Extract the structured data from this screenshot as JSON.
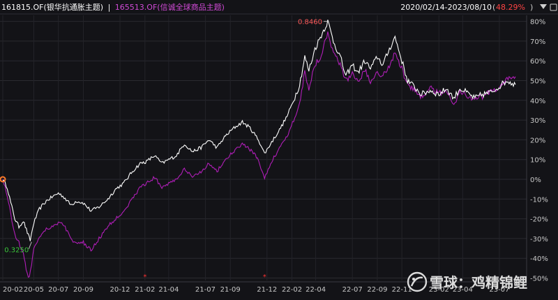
{
  "header": {
    "series1_code": "161815.OF",
    "series1_name": "(银华抗通胀主题)",
    "separator": "|",
    "series2_code": "165513.OF",
    "series2_name": "(信诚全球商品主题)",
    "date_range": "2020/02/14-2023/08/10",
    "change_value": "48.29%",
    "dropdown_icon": "triangle-down-icon"
  },
  "watermark": {
    "logo_icon": "snowball-logo-icon",
    "text": "雪球：鸡精锦鲤"
  },
  "colors": {
    "background": "#131317",
    "series1": "#ffffff",
    "series2": "#b01eb8",
    "max_label": "#ff5a5a",
    "min_label": "#3cc83c",
    "change_value": "#ff4444",
    "marker": "#ff3333"
  },
  "chart_data": {
    "type": "line",
    "title": "",
    "xlabel": "",
    "ylabel": "",
    "ylim": [
      -58,
      82
    ],
    "y_ticks": [
      80,
      70,
      60,
      50,
      40,
      30,
      20,
      10,
      0,
      -10,
      -20,
      -30,
      -40,
      -50
    ],
    "y_tick_labels": [
      "80%",
      "70%",
      "60%",
      "50%",
      "40%",
      "30%",
      "20%",
      "10%",
      "0%",
      "-10%",
      "-20%",
      "-30%",
      "-40%",
      "-50%"
    ],
    "x_ticks": [
      "2020-02-14",
      "2020-05-01",
      "2020-07-01",
      "2020-09-01",
      "2020-12-01",
      "2021-02-01",
      "2021-04-01",
      "2021-07-01",
      "2021-09-01",
      "2021-12-01",
      "2022-02-01",
      "2022-04-01",
      "2022-07-01",
      "2022-09-01",
      "2022-11-01",
      "2023-02-01",
      "2023-04-01",
      "2023-07-01"
    ],
    "x_tick_labels": [
      "20-02",
      "20-05",
      "20-07",
      "20-09",
      "20-12",
      "21-02",
      "21-04",
      "21-07",
      "21-09",
      "21-12",
      "22-02",
      "22-04",
      "22-07",
      "22-09",
      "22-11",
      "23-02",
      "23-04",
      "23-07"
    ],
    "x_range": [
      "2020-02-14",
      "2023-08-10"
    ],
    "grid": true,
    "series": [
      {
        "code": "161815.OF",
        "points": [
          [
            "2020-02-14",
            0
          ],
          [
            "2020-02-25",
            -4
          ],
          [
            "2020-03-05",
            -12
          ],
          [
            "2020-03-15",
            -20
          ],
          [
            "2020-03-25",
            -24
          ],
          [
            "2020-04-05",
            -21
          ],
          [
            "2020-04-15",
            -27
          ],
          [
            "2020-04-22",
            -31
          ],
          [
            "2020-05-01",
            -22
          ],
          [
            "2020-05-15",
            -15
          ],
          [
            "2020-06-01",
            -11
          ],
          [
            "2020-06-15",
            -9
          ],
          [
            "2020-07-01",
            -7
          ],
          [
            "2020-07-15",
            -9
          ],
          [
            "2020-08-01",
            -13
          ],
          [
            "2020-08-15",
            -11
          ],
          [
            "2020-09-01",
            -12
          ],
          [
            "2020-09-20",
            -16
          ],
          [
            "2020-10-10",
            -14
          ],
          [
            "2020-11-01",
            -10
          ],
          [
            "2020-11-20",
            -5
          ],
          [
            "2020-12-10",
            -2
          ],
          [
            "2021-01-01",
            4
          ],
          [
            "2021-01-20",
            8
          ],
          [
            "2021-02-05",
            9
          ],
          [
            "2021-02-25",
            12
          ],
          [
            "2021-03-15",
            8
          ],
          [
            "2021-04-01",
            10
          ],
          [
            "2021-04-20",
            12
          ],
          [
            "2021-05-10",
            18
          ],
          [
            "2021-05-30",
            14
          ],
          [
            "2021-06-20",
            16
          ],
          [
            "2021-07-10",
            20
          ],
          [
            "2021-07-30",
            16
          ],
          [
            "2021-08-20",
            22
          ],
          [
            "2021-09-10",
            26
          ],
          [
            "2021-10-01",
            29
          ],
          [
            "2021-10-20",
            26
          ],
          [
            "2021-11-10",
            20
          ],
          [
            "2021-11-25",
            13
          ],
          [
            "2021-12-10",
            18
          ],
          [
            "2022-01-01",
            25
          ],
          [
            "2022-01-20",
            32
          ],
          [
            "2022-02-05",
            40
          ],
          [
            "2022-02-20",
            48
          ],
          [
            "2022-03-05",
            62
          ],
          [
            "2022-03-15",
            55
          ],
          [
            "2022-03-30",
            66
          ],
          [
            "2022-04-15",
            73
          ],
          [
            "2022-05-01",
            80
          ],
          [
            "2022-05-15",
            70
          ],
          [
            "2022-06-01",
            62
          ],
          [
            "2022-06-15",
            52
          ],
          [
            "2022-07-01",
            58
          ],
          [
            "2022-07-15",
            54
          ],
          [
            "2022-08-01",
            60
          ],
          [
            "2022-08-15",
            56
          ],
          [
            "2022-09-01",
            62
          ],
          [
            "2022-09-15",
            58
          ],
          [
            "2022-10-01",
            66
          ],
          [
            "2022-10-15",
            72
          ],
          [
            "2022-11-01",
            60
          ],
          [
            "2022-11-15",
            50
          ],
          [
            "2022-12-01",
            47
          ],
          [
            "2022-12-20",
            43
          ],
          [
            "2023-01-10",
            45
          ],
          [
            "2023-02-01",
            43
          ],
          [
            "2023-02-20",
            46
          ],
          [
            "2023-03-10",
            41
          ],
          [
            "2023-03-25",
            46
          ],
          [
            "2023-04-10",
            44
          ],
          [
            "2023-05-01",
            41
          ],
          [
            "2023-05-20",
            43
          ],
          [
            "2023-06-10",
            44
          ],
          [
            "2023-06-30",
            47
          ],
          [
            "2023-07-20",
            50
          ],
          [
            "2023-08-10",
            48
          ]
        ]
      },
      {
        "code": "165513.OF",
        "points": [
          [
            "2020-02-14",
            0
          ],
          [
            "2020-02-25",
            -8
          ],
          [
            "2020-03-05",
            -18
          ],
          [
            "2020-03-15",
            -28
          ],
          [
            "2020-03-25",
            -32
          ],
          [
            "2020-04-05",
            -38
          ],
          [
            "2020-04-12",
            -45
          ],
          [
            "2020-04-20",
            -50
          ],
          [
            "2020-05-01",
            -35
          ],
          [
            "2020-05-15",
            -29
          ],
          [
            "2020-06-01",
            -25
          ],
          [
            "2020-06-15",
            -24
          ],
          [
            "2020-07-01",
            -22
          ],
          [
            "2020-07-15",
            -23
          ],
          [
            "2020-08-01",
            -30
          ],
          [
            "2020-08-15",
            -33
          ],
          [
            "2020-09-01",
            -32
          ],
          [
            "2020-09-20",
            -36
          ],
          [
            "2020-10-10",
            -30
          ],
          [
            "2020-11-01",
            -24
          ],
          [
            "2020-11-20",
            -20
          ],
          [
            "2020-12-10",
            -16
          ],
          [
            "2021-01-01",
            -10
          ],
          [
            "2021-01-20",
            -4
          ],
          [
            "2021-02-05",
            -2
          ],
          [
            "2021-02-25",
            1
          ],
          [
            "2021-03-15",
            -4
          ],
          [
            "2021-04-01",
            -2
          ],
          [
            "2021-04-20",
            0
          ],
          [
            "2021-05-10",
            5
          ],
          [
            "2021-05-30",
            1
          ],
          [
            "2021-06-20",
            4
          ],
          [
            "2021-07-10",
            8
          ],
          [
            "2021-07-30",
            4
          ],
          [
            "2021-08-20",
            10
          ],
          [
            "2021-09-10",
            14
          ],
          [
            "2021-10-01",
            18
          ],
          [
            "2021-10-20",
            15
          ],
          [
            "2021-11-10",
            10
          ],
          [
            "2021-11-25",
            0
          ],
          [
            "2021-12-10",
            8
          ],
          [
            "2022-01-01",
            16
          ],
          [
            "2022-01-20",
            22
          ],
          [
            "2022-02-05",
            30
          ],
          [
            "2022-02-20",
            38
          ],
          [
            "2022-03-05",
            55
          ],
          [
            "2022-03-15",
            46
          ],
          [
            "2022-03-30",
            58
          ],
          [
            "2022-04-15",
            63
          ],
          [
            "2022-05-01",
            75
          ],
          [
            "2022-05-15",
            64
          ],
          [
            "2022-06-01",
            58
          ],
          [
            "2022-06-15",
            50
          ],
          [
            "2022-07-01",
            54
          ],
          [
            "2022-07-15",
            50
          ],
          [
            "2022-08-01",
            55
          ],
          [
            "2022-08-15",
            50
          ],
          [
            "2022-09-01",
            55
          ],
          [
            "2022-09-15",
            52
          ],
          [
            "2022-10-01",
            58
          ],
          [
            "2022-10-15",
            64
          ],
          [
            "2022-11-01",
            56
          ],
          [
            "2022-11-15",
            48
          ],
          [
            "2022-12-01",
            45
          ],
          [
            "2022-12-20",
            42
          ],
          [
            "2023-01-10",
            46
          ],
          [
            "2023-02-01",
            44
          ],
          [
            "2023-02-20",
            45
          ],
          [
            "2023-03-10",
            38
          ],
          [
            "2023-03-25",
            44
          ],
          [
            "2023-04-10",
            43
          ],
          [
            "2023-05-01",
            40
          ],
          [
            "2023-05-20",
            42
          ],
          [
            "2023-06-10",
            44
          ],
          [
            "2023-06-30",
            47
          ],
          [
            "2023-07-20",
            50
          ],
          [
            "2023-08-10",
            52
          ]
        ]
      }
    ],
    "annotations": [
      {
        "label": "0.8460",
        "x": "2022-05-01",
        "y": 80,
        "kind": "max"
      },
      {
        "label": "0.3250",
        "x": "2020-04-22",
        "y": -31,
        "kind": "min"
      }
    ],
    "event_markers": [
      {
        "x": "2021-02-01",
        "symbol": "*"
      },
      {
        "x": "2021-11-25",
        "symbol": "*"
      }
    ],
    "start_marker": {
      "x": "2020-02-14",
      "y": 0
    }
  }
}
